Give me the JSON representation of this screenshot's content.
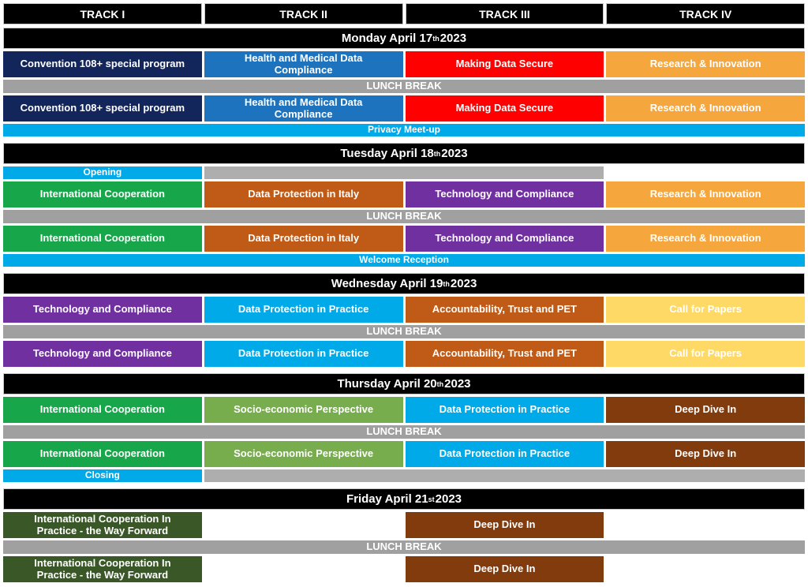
{
  "palette": {
    "black": "#000000",
    "white": "#ffffff",
    "navy": "#13265C",
    "blue": "#1E73BE",
    "red": "#FF0000",
    "orange": "#F5A63C",
    "lightblue": "#00A9E8",
    "green": "#17A74A",
    "rust": "#C05A17",
    "purple": "#7030A0",
    "olive": "#78AD4E",
    "gold": "#FFD966",
    "brown": "#823B0D",
    "darkolive": "#3A5827",
    "lunchgray": "#A0A0A0",
    "fillgray": "#AEAEAE"
  },
  "tracks": [
    "TRACK I",
    "TRACK II",
    "TRACK III",
    "TRACK IV"
  ],
  "lunch_label": "LUNCH BREAK",
  "days": [
    {
      "title": {
        "pre": "Monday April 17",
        "sup": "th",
        "post": " 2023"
      },
      "rows": [
        {
          "kind": "session",
          "cells": [
            {
              "label": "Convention 108+ special program",
              "bg": "navy",
              "span": 1
            },
            {
              "label": "Health and Medical Data\nCompliance",
              "bg": "blue",
              "span": 1
            },
            {
              "label": "Making Data Secure",
              "bg": "red",
              "span": 1
            },
            {
              "label": "Research & Innovation",
              "bg": "orange",
              "span": 1
            }
          ]
        },
        {
          "kind": "break",
          "label": "LUNCH BREAK"
        },
        {
          "kind": "session",
          "cells": [
            {
              "label": "Convention 108+ special program",
              "bg": "navy",
              "span": 1
            },
            {
              "label": "Health and Medical Data\nCompliance",
              "bg": "blue",
              "span": 1
            },
            {
              "label": "Making Data Secure",
              "bg": "red",
              "span": 1
            },
            {
              "label": "Research & Innovation",
              "bg": "orange",
              "span": 1
            }
          ]
        },
        {
          "kind": "banner",
          "label": "Privacy Meet-up",
          "bg": "lightblue"
        }
      ]
    },
    {
      "title": {
        "pre": "Tuesday April 18",
        "sup": "th",
        "post": " 2023"
      },
      "rows": [
        {
          "kind": "thin",
          "cells": [
            {
              "label": "Opening",
              "bg": "lightblue",
              "span": 1
            },
            {
              "label": "",
              "bg": "fillgray",
              "span": 2
            },
            {
              "label": "",
              "bg": null,
              "span": 1
            }
          ]
        },
        {
          "kind": "session",
          "cells": [
            {
              "label": "International Cooperation",
              "bg": "green",
              "span": 1
            },
            {
              "label": "Data Protection in Italy",
              "bg": "rust",
              "span": 1
            },
            {
              "label": "Technology and Compliance",
              "bg": "purple",
              "span": 1
            },
            {
              "label": "Research & Innovation",
              "bg": "orange",
              "span": 1
            }
          ]
        },
        {
          "kind": "break",
          "label": "LUNCH BREAK"
        },
        {
          "kind": "session",
          "cells": [
            {
              "label": "International Cooperation",
              "bg": "green",
              "span": 1
            },
            {
              "label": "Data Protection in Italy",
              "bg": "rust",
              "span": 1
            },
            {
              "label": "Technology and Compliance",
              "bg": "purple",
              "span": 1
            },
            {
              "label": "Research & Innovation",
              "bg": "orange",
              "span": 1
            }
          ]
        },
        {
          "kind": "banner",
          "label": "Welcome Reception",
          "bg": "lightblue"
        }
      ]
    },
    {
      "title": {
        "pre": "Wednesday April 19",
        "sup": "th",
        "post": " 2023"
      },
      "rows": [
        {
          "kind": "session",
          "cells": [
            {
              "label": "Technology and Compliance",
              "bg": "purple",
              "span": 1
            },
            {
              "label": "Data Protection in Practice",
              "bg": "lightblue",
              "span": 1
            },
            {
              "label": "Accountability, Trust and PET",
              "bg": "rust",
              "span": 1
            },
            {
              "label": "Call for Papers",
              "bg": "gold",
              "span": 1
            }
          ]
        },
        {
          "kind": "break",
          "label": "LUNCH BREAK"
        },
        {
          "kind": "session",
          "cells": [
            {
              "label": "Technology and Compliance",
              "bg": "purple",
              "span": 1
            },
            {
              "label": "Data Protection in Practice",
              "bg": "lightblue",
              "span": 1
            },
            {
              "label": "Accountability, Trust and PET",
              "bg": "rust",
              "span": 1
            },
            {
              "label": "Call for Papers",
              "bg": "gold",
              "span": 1
            }
          ]
        }
      ]
    },
    {
      "title": {
        "pre": "Thursday April 20",
        "sup": "th",
        "post": " 2023"
      },
      "rows": [
        {
          "kind": "session",
          "cells": [
            {
              "label": "International Cooperation",
              "bg": "green",
              "span": 1
            },
            {
              "label": "Socio-economic Perspective",
              "bg": "olive",
              "span": 1
            },
            {
              "label": "Data Protection in Practice",
              "bg": "lightblue",
              "span": 1
            },
            {
              "label": "Deep Dive In",
              "bg": "brown",
              "span": 1
            }
          ]
        },
        {
          "kind": "break",
          "label": "LUNCH BREAK"
        },
        {
          "kind": "session",
          "cells": [
            {
              "label": "International Cooperation",
              "bg": "green",
              "span": 1
            },
            {
              "label": "Socio-economic Perspective",
              "bg": "olive",
              "span": 1
            },
            {
              "label": "Data Protection in Practice",
              "bg": "lightblue",
              "span": 1
            },
            {
              "label": "Deep Dive In",
              "bg": "brown",
              "span": 1
            }
          ]
        },
        {
          "kind": "thin",
          "cells": [
            {
              "label": "Closing",
              "bg": "lightblue",
              "span": 1
            },
            {
              "label": "",
              "bg": "fillgray",
              "span": 3
            }
          ]
        }
      ]
    },
    {
      "title": {
        "pre": "Friday April 21",
        "sup": "st",
        "post": " 2023"
      },
      "rows": [
        {
          "kind": "session",
          "cells": [
            {
              "label": "International Cooperation In\nPractice - the Way Forward",
              "bg": "darkolive",
              "span": 1
            },
            {
              "label": "",
              "bg": null,
              "span": 1
            },
            {
              "label": "Deep Dive In",
              "bg": "brown",
              "span": 1
            },
            {
              "label": "",
              "bg": null,
              "span": 1
            }
          ]
        },
        {
          "kind": "break",
          "label": "LUNCH BREAK"
        },
        {
          "kind": "session",
          "cells": [
            {
              "label": "International Cooperation In\nPractice - the Way Forward",
              "bg": "darkolive",
              "span": 1
            },
            {
              "label": "",
              "bg": null,
              "span": 1
            },
            {
              "label": "Deep Dive In",
              "bg": "brown",
              "span": 1
            },
            {
              "label": "",
              "bg": null,
              "span": 1
            }
          ]
        }
      ]
    }
  ]
}
